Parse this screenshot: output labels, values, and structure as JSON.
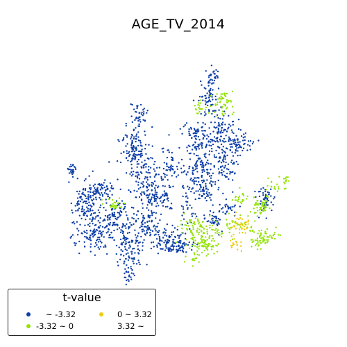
{
  "title": "AGE_TV_2014",
  "legend": {
    "title": "t-value",
    "entries": [
      {
        "label": "~ -3.32",
        "color": "#0d3ea6"
      },
      {
        "label": "-3.32 ~ 0",
        "color": "#95e40b"
      },
      {
        "label": "0 ~ 3.32",
        "color": "#f0cc0c"
      },
      {
        "label": "3.32 ~",
        "color": ""
      }
    ]
  },
  "chart_data": {
    "type": "scatter",
    "title": "AGE_TV_2014",
    "legend_title": "t-value",
    "legend_placement": "bottom-left",
    "axes": "off",
    "classes": [
      {
        "name": "~ -3.32",
        "color": "#0d3ea6",
        "share": "majority of points; spread over most of the map"
      },
      {
        "name": "-3.32 ~ 0",
        "color": "#95e40b",
        "share": "clusters in the north-east, east and south-east"
      },
      {
        "name": "0 ~ 3.32",
        "color": "#f0cc0c",
        "share": "small cluster in the south-east"
      },
      {
        "name": "3.32 ~",
        "color": "",
        "share": "none visible"
      }
    ]
  }
}
